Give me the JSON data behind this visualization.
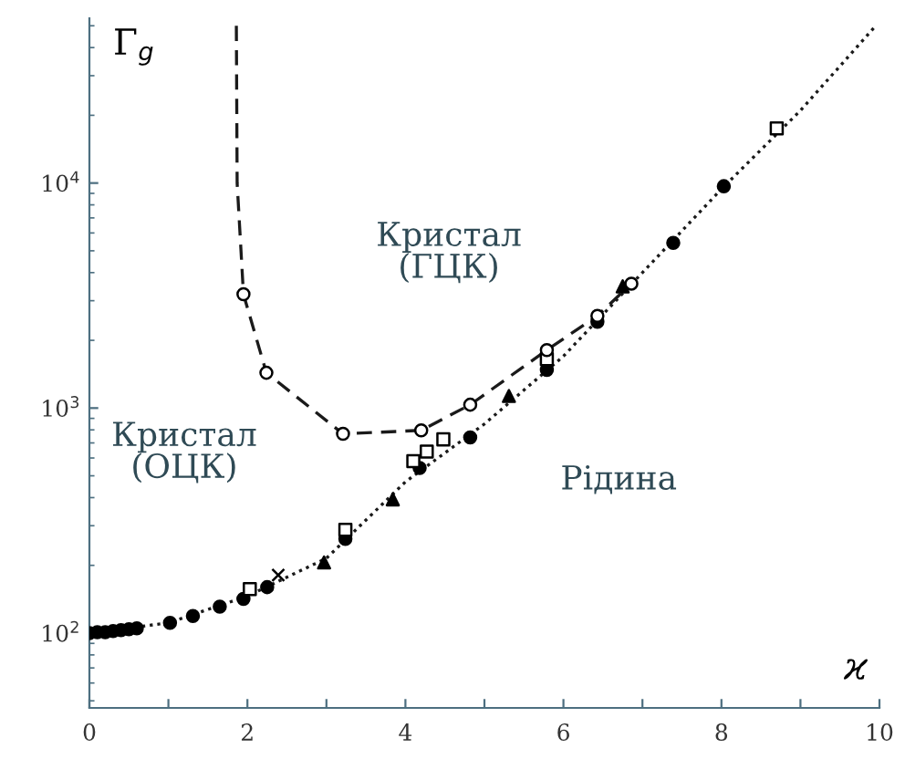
{
  "chart_data": {
    "type": "scatter",
    "xlabel": "ϰ",
    "ylabel": "Γ$_{g}$",
    "log": "y",
    "xlim": [
      0,
      10
    ],
    "ylim": [
      46.5,
      54000
    ],
    "xticks": [
      0,
      {
        "value": 1,
        "label": null
      },
      2,
      {
        "value": 3,
        "label": null
      },
      4,
      {
        "value": 5,
        "label": null
      },
      6,
      {
        "value": 7,
        "label": null
      },
      8,
      {
        "value": 9,
        "label": null
      },
      10
    ],
    "yticks": [
      {
        "value": 100,
        "label": "10$^{2}$"
      },
      {
        "value": 1000,
        "label": "10$^{3}$"
      },
      {
        "value": 10000,
        "label": "10$^{4}$"
      }
    ],
    "grid": false,
    "legend": false,
    "series": [
      {
        "type": "line",
        "color": "#1a1a1a",
        "marker": "none",
        "line_style": "dotted",
        "x": [
          0,
          1,
          2,
          3,
          4,
          5,
          6,
          7,
          8,
          9,
          9.96
        ],
        "values": [
          100,
          111,
          146,
          215,
          470,
          850,
          1700,
          4000,
          9400,
          21000,
          50300
        ]
      },
      {
        "type": "line",
        "color": "#1a1a1a",
        "marker": "none",
        "line_style": "dashed",
        "x": [
          1.86,
          1.87,
          1.95,
          2.24,
          3.21,
          4.2,
          4.82,
          5.79,
          6.43,
          6.86
        ],
        "values": [
          50000,
          10000,
          3205,
          1435,
          768,
          796,
          1035,
          1811,
          2570,
          3573
        ]
      },
      {
        "color": "#ffffff",
        "marker": "circle",
        "x": [
          1.95,
          2.24,
          3.21,
          4.2,
          4.82,
          5.79,
          6.43,
          6.86
        ],
        "values": [
          3205,
          1435,
          768,
          796,
          1035,
          1811,
          2570,
          3573
        ]
      },
      {
        "color": "#000000",
        "marker": "circle",
        "x": [
          0,
          0.1,
          0.2,
          0.3,
          0.4,
          0.5,
          0.6,
          1.02,
          1.31,
          1.65,
          1.95,
          2.25,
          3.24,
          4.18,
          4.82,
          5.79,
          6.43,
          7.39,
          8.03
        ],
        "values": [
          100,
          101,
          101,
          102,
          103,
          104,
          105,
          111,
          119,
          131,
          142,
          160,
          262,
          542,
          741,
          1479,
          2417,
          5420,
          9680
        ]
      },
      {
        "color": "#ffffff",
        "marker": "square",
        "x": [
          2.03,
          3.24,
          4.1,
          4.27,
          4.48,
          5.79,
          8.7
        ],
        "values": [
          157,
          288,
          581,
          641,
          726,
          1649,
          17500
        ]
      },
      {
        "color": "#000000",
        "marker": "triangle",
        "x": [
          2.97,
          3.84,
          5.31,
          6.75
        ],
        "values": [
          206,
          393,
          1132,
          3473
        ]
      },
      {
        "color": "#000000",
        "marker": "cross",
        "x": [
          2.39
        ],
        "values": [
          181
        ]
      }
    ],
    "annotations": [
      "Кристал\n(ГЦК)",
      "Кристал\n(ОЦК)",
      "Рідина"
    ]
  }
}
